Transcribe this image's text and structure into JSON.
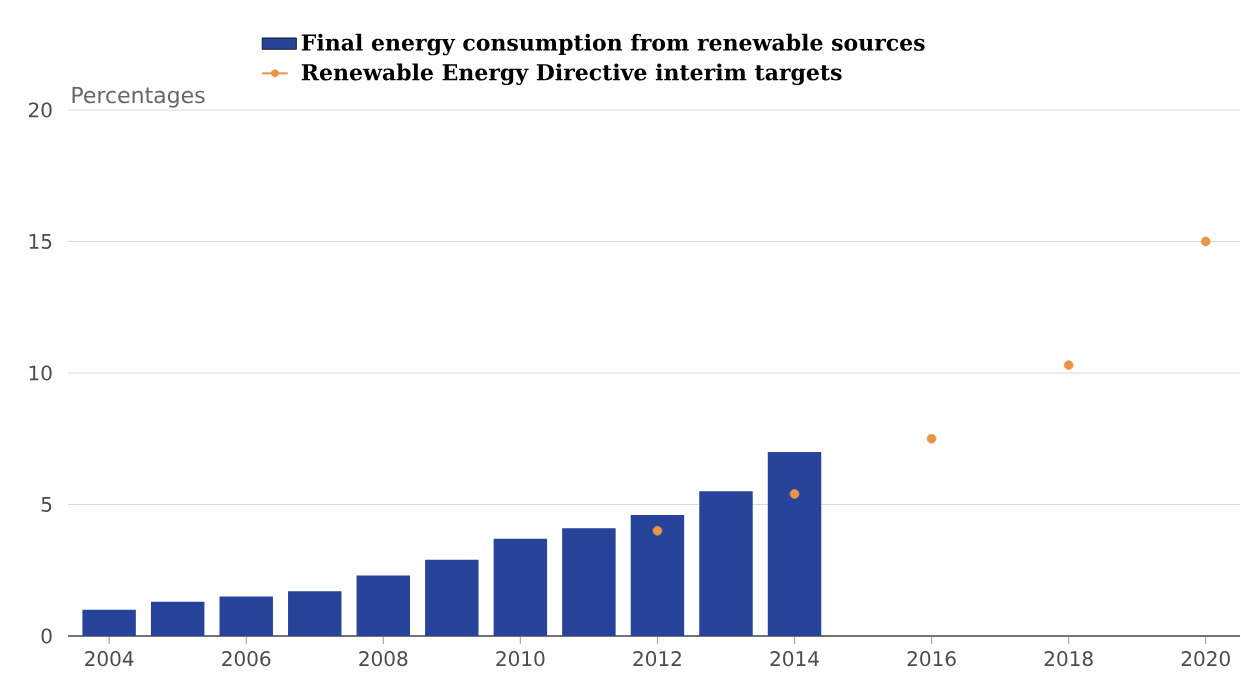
{
  "chart_data": {
    "type": "bar",
    "ylabel": "Percentages",
    "xlim": [
      2003.4,
      2020.5
    ],
    "xticks": [
      2004,
      2006,
      2008,
      2010,
      2012,
      2014,
      2016,
      2018,
      2020
    ],
    "ylim": [
      0,
      20
    ],
    "yticks": [
      0,
      5,
      10,
      15,
      20
    ],
    "grid": "y",
    "legend": "top",
    "marker": "circle",
    "series": [
      {
        "name": "Final energy consumption from renewable sources",
        "color": "#27449a",
        "x": [
          2004,
          2005,
          2006,
          2007,
          2008,
          2009,
          2010,
          2011,
          2012,
          2013,
          2014
        ],
        "values": [
          1.0,
          1.3,
          1.5,
          1.7,
          2.3,
          2.9,
          3.7,
          4.1,
          4.6,
          5.5,
          7.0
        ]
      },
      {
        "name": "Renewable Energy Directive interim targets",
        "type": "scatter",
        "color": "#e8954a",
        "x": [
          2012,
          2014,
          2016,
          2018,
          2020
        ],
        "values": [
          4.0,
          5.4,
          7.5,
          10.3,
          15.0
        ]
      }
    ]
  }
}
